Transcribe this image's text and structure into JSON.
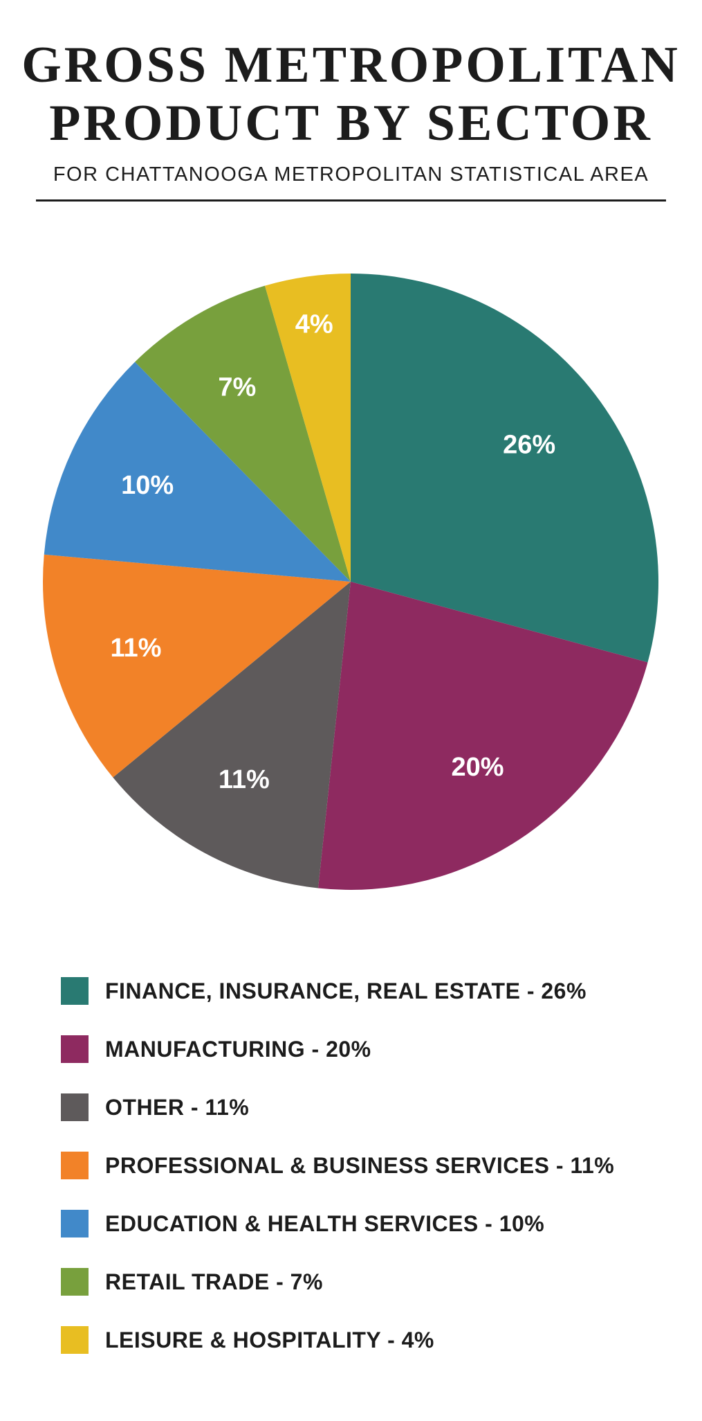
{
  "chart_data": {
    "type": "pie",
    "title": [
      "GROSS METROPOLITAN",
      "PRODUCT BY SECTOR"
    ],
    "subtitle": "FOR CHATTANOOGA METROPOLITAN STATISTICAL AREA",
    "legend_position": "bottom",
    "slices": [
      {
        "legend": "FINANCE, INSURANCE, REAL ESTATE - 26%",
        "label": "26%",
        "value": 26,
        "color": "#297a72"
      },
      {
        "legend": "MANUFACTURING - 20%",
        "label": "20%",
        "value": 20,
        "color": "#8e2a60"
      },
      {
        "legend": "OTHER - 11%",
        "label": "11%",
        "value": 11,
        "color": "#5e5a5b"
      },
      {
        "legend": "PROFESSIONAL & BUSINESS SERVICES - 11%",
        "label": "11%",
        "value": 11,
        "color": "#f28228"
      },
      {
        "legend": "EDUCATION & HEALTH SERVICES - 10%",
        "label": "10%",
        "value": 10,
        "color": "#4189c9"
      },
      {
        "legend": "RETAIL TRADE - 7%",
        "label": "7%",
        "value": 7,
        "color": "#78a03d"
      },
      {
        "legend": "LEISURE & HOSPITALITY - 4%",
        "label": "4%",
        "value": 4,
        "color": "#e8be22"
      }
    ]
  }
}
